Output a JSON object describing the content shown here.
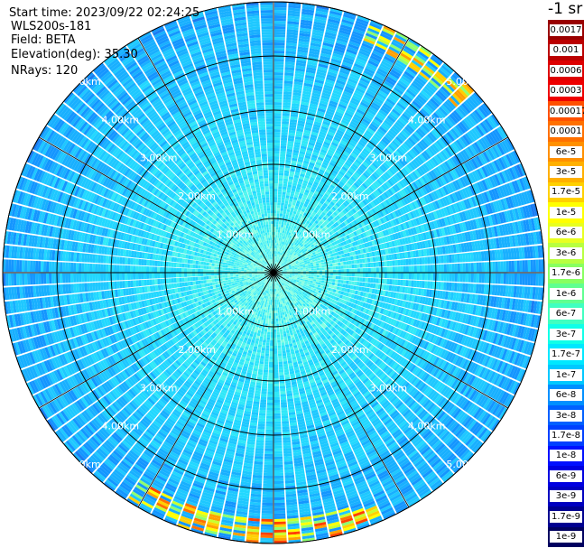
{
  "info": {
    "start_time": "Start time: 2023/09/22 02:24:25",
    "instrument": "WLS200s-181",
    "field": "Field: BETA",
    "elevation": "Elevation(deg): 35.30",
    "nrays": "NRays: 120"
  },
  "chart_data": {
    "type": "heatmap",
    "projection": "polar (PPI scan)",
    "range_rings_km": [
      1,
      2,
      3,
      4,
      5
    ],
    "ring_labels": [
      "1.00km",
      "2.00km",
      "3.00km",
      "4.00km",
      "5.00km"
    ],
    "max_range_km": 5.0,
    "n_rays": 120,
    "gate_length_km": 0.05,
    "dominant_value_range": [
      "1e-7",
      "6e-8"
    ],
    "high_values_near_edge": {
      "directions": [
        "north-northeast",
        "south"
      ],
      "value_range": [
        "3e-6",
        "0.0003"
      ]
    },
    "grid": true
  },
  "colorbar": {
    "title": "-1 sr",
    "labels": [
      "0.0017",
      "0.001",
      "0.0006",
      "0.0003",
      "0.00017",
      "0.0001",
      "6e-5",
      "3e-5",
      "1.7e-5",
      "1e-5",
      "6e-6",
      "3e-6",
      "1.7e-6",
      "1e-6",
      "6e-7",
      "3e-7",
      "1.7e-7",
      "1e-7",
      "6e-8",
      "3e-8",
      "1.7e-8",
      "1e-8",
      "6e-9",
      "3e-9",
      "1.7e-9",
      "1e-9"
    ],
    "colors": [
      "#990000",
      "#bb0000",
      "#dd0000",
      "#ee0000",
      "#ff5000",
      "#ff7000",
      "#ff9000",
      "#ffb000",
      "#ffd000",
      "#ffff00",
      "#e8ff20",
      "#b8ff40",
      "#88ff60",
      "#60ff90",
      "#40ffc0",
      "#10ffe8",
      "#00e8ff",
      "#00c8ff",
      "#0090ff",
      "#0060ff",
      "#0040ff",
      "#0010ff",
      "#0000e0",
      "#0000c0",
      "#000090",
      "#000060"
    ]
  }
}
